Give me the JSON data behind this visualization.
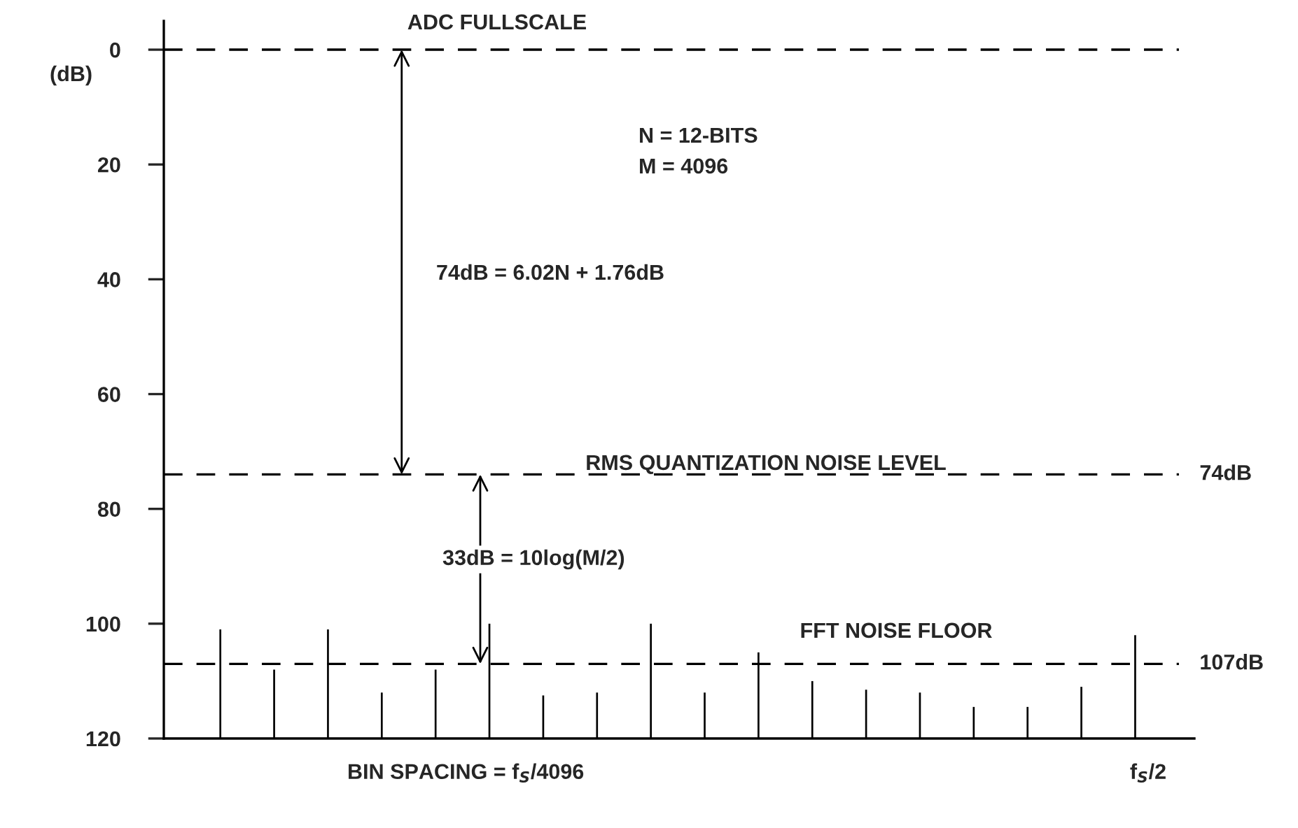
{
  "chart_data": {
    "type": "bar",
    "ylabel": "(dB)",
    "color": "#000000",
    "base": [
      120,
      120,
      120,
      120,
      120,
      120,
      120,
      120,
      120,
      120,
      120,
      120,
      120,
      120,
      120,
      120,
      120,
      120
    ],
    "categories": [
      null,
      null,
      null,
      null,
      null,
      null,
      null,
      null,
      null,
      null,
      null,
      null,
      null,
      null,
      null,
      null,
      null,
      null
    ],
    "values": [
      -19,
      -12,
      -19,
      -8,
      -12,
      -20,
      -7.5,
      -8,
      -20,
      -8,
      -15,
      -10,
      -8.5,
      -8,
      -5.5,
      -5.5,
      -9,
      -18
    ],
    "ylim": [
      120,
      -5
    ],
    "yticks": [
      0,
      20,
      40,
      60,
      80,
      100,
      120
    ],
    "grid": false,
    "legend": false,
    "ref_lines": [
      {
        "axis": "y",
        "value": 0,
        "label": null,
        "line_style": "dashed"
      },
      {
        "axis": "y",
        "value": 74,
        "label": "74dB",
        "line_style": "dashed"
      },
      {
        "axis": "y",
        "value": 107,
        "label": "107dB",
        "line_style": "dashed"
      }
    ],
    "annotations": [
      "ADC FULLSCALE",
      "N = 12-BITS",
      "M = 4096",
      "74dB = 6.02N + 1.76dB",
      "RMS QUANTIZATION NOISE LEVEL",
      "33dB = 10log(M/2)",
      "FFT NOISE FLOOR",
      "BIN SPACING = f$_{S}$/4096",
      "f$_{S}$/2"
    ]
  }
}
